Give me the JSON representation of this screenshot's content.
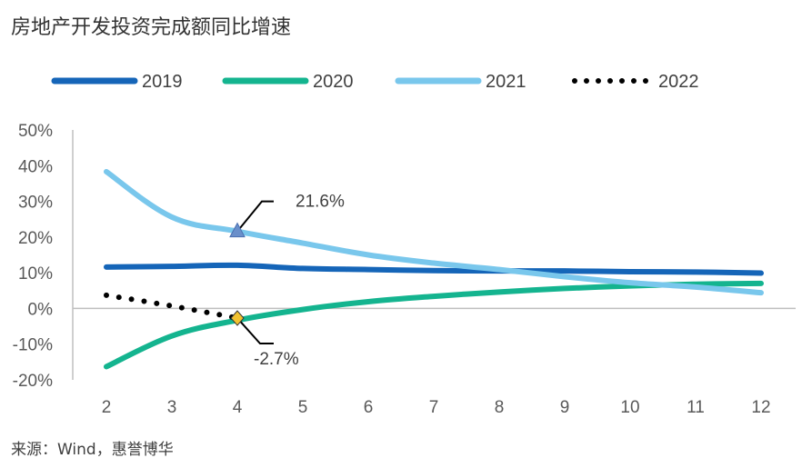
{
  "title": "房地产开发投资完成额同比增速",
  "source": "来源：Wind，惠誉博华",
  "colors": {
    "2019": "#1565b8",
    "2020": "#14b48f",
    "2021": "#79c7ec",
    "2022": "#000000",
    "marker_triangle": "#6a8fca",
    "marker_diamond": "#f2c230",
    "axis": "#bfbfbf"
  },
  "chart_data": {
    "type": "line",
    "title": "房地产开发投资完成额同比增速",
    "xlabel": "",
    "ylabel": "",
    "x": [
      2,
      3,
      4,
      5,
      6,
      7,
      8,
      9,
      10,
      11,
      12
    ],
    "x_tick_labels": [
      "2",
      "3",
      "4",
      "5",
      "6",
      "7",
      "8",
      "9",
      "10",
      "11",
      "12"
    ],
    "ylim": [
      -20,
      50
    ],
    "y_ticks": [
      50,
      40,
      30,
      20,
      10,
      0,
      -10,
      -20
    ],
    "y_tick_labels": [
      "50%",
      "40%",
      "30%",
      "20%",
      "10%",
      "0%",
      "-10%",
      "-20%"
    ],
    "grid": false,
    "legend_position": "top",
    "series": [
      {
        "name": "2019",
        "style": "solid",
        "values": [
          11.6,
          11.8,
          12.1,
          11.2,
          10.9,
          10.6,
          10.5,
          10.5,
          10.3,
          10.2,
          9.9
        ]
      },
      {
        "name": "2020",
        "style": "solid",
        "values": [
          -16.3,
          -7.7,
          -3.3,
          -0.3,
          1.9,
          3.4,
          4.6,
          5.6,
          6.3,
          6.8,
          7.0
        ]
      },
      {
        "name": "2021",
        "style": "solid",
        "values": [
          38.3,
          25.6,
          21.6,
          18.3,
          15.0,
          12.7,
          10.9,
          8.9,
          7.2,
          6.0,
          4.4
        ]
      },
      {
        "name": "2022",
        "style": "dotted",
        "values": [
          3.7,
          0.7,
          -2.7,
          null,
          null,
          null,
          null,
          null,
          null,
          null,
          null
        ]
      }
    ],
    "annotations": [
      {
        "text": "21.6%",
        "x": 4,
        "y": 21.6,
        "series": "2021",
        "marker": "triangle"
      },
      {
        "text": "-2.7%",
        "x": 4,
        "y": -2.7,
        "series": "2022",
        "marker": "diamond"
      }
    ]
  }
}
